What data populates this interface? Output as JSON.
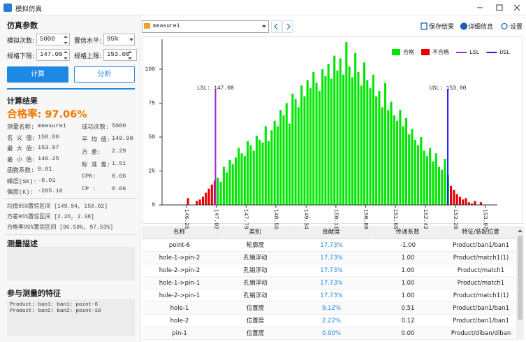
{
  "window": {
    "title": "模拟仿真"
  },
  "params": {
    "title": "仿真参数",
    "fields": [
      {
        "label": "模拟次数:",
        "value": "5000"
      },
      {
        "label": "置信水平:",
        "value": "95%"
      },
      {
        "label": "规格下限:",
        "value": "147.00"
      },
      {
        "label": "规格上限:",
        "value": "153.00"
      }
    ],
    "buttons": [
      "计算",
      "分析"
    ]
  },
  "results": {
    "title": "计算结果",
    "pass_rate": "合格率: 97.06%",
    "stats_left": [
      {
        "label": "测量名称:",
        "value": "measure1"
      },
      {
        "label": "名 义 值:",
        "value": "150.00"
      },
      {
        "label": "最 大 值:",
        "value": "153.97"
      },
      {
        "label": "最 小 值:",
        "value": "146.25"
      },
      {
        "label": "函数系数:",
        "value": "0.01"
      },
      {
        "label": "峰度(SK):",
        "value": "-0.01"
      },
      {
        "label": "偏度(K):",
        "value": "-265.16"
      }
    ],
    "stats_right": [
      {
        "label": "成功次数:",
        "value": "5000"
      },
      {
        "label": "平 均 值:",
        "value": "149.98"
      },
      {
        "label": "方   差:",
        "value": "2.29"
      },
      {
        "label": "标 准 差:",
        "value": "1.51"
      },
      {
        "label": "CPK:",
        "value": "0.66"
      },
      {
        "label": "CP :",
        "value": "0.66"
      }
    ],
    "intervals": [
      "均值95%置信区间 [149.94, 150.02]",
      "方差95%置信区间 [2.20, 2.38]",
      "合格率95%置信区间 [96.59%, 97.53%]"
    ]
  },
  "description": {
    "title": "测量描述"
  },
  "features": {
    "title": "参与测量的特征",
    "lines": [
      "Product: ban1: ban1: point-6",
      "Product: ban2: ban2: point-10"
    ]
  },
  "toolbar": {
    "measure": "measure1",
    "buttons": [
      "保存结果",
      "详细信息",
      "设置"
    ]
  },
  "chart_data": {
    "type": "histogram",
    "bins": [
      146.25,
      146.3272,
      146.4044,
      146.4816,
      146.5588,
      146.636,
      146.7132,
      146.7904,
      146.8676,
      146.9448,
      147.022,
      147.0992,
      147.1764,
      147.2536,
      147.3308,
      147.408,
      147.4852,
      147.5624,
      147.6396,
      147.7168,
      147.794,
      147.8712,
      147.9484,
      148.0256,
      148.1028,
      148.18,
      148.2572,
      148.3344,
      148.4116,
      148.4888,
      148.566,
      148.6432,
      148.7204,
      148.7976,
      148.8748,
      148.952,
      149.0292,
      149.1064,
      149.1836,
      149.2608,
      149.338,
      149.4152,
      149.4924,
      149.5696,
      149.6468,
      149.724,
      149.8012,
      149.8784,
      149.9556,
      150.0328,
      150.11,
      150.1872,
      150.2644,
      150.3416,
      150.4188,
      150.496,
      150.5732,
      150.6504,
      150.7276,
      150.8048,
      150.882,
      150.9592,
      151.0364,
      151.1136,
      151.1908,
      151.268,
      151.3452,
      151.4224,
      151.4996,
      151.5768,
      151.654,
      151.7312,
      151.8084,
      151.8856,
      151.9628,
      152.04,
      152.1172,
      152.1944,
      152.2716,
      152.3488,
      152.426,
      152.5032,
      152.5804,
      152.6576,
      152.7348,
      152.812,
      152.8892,
      152.9664,
      153.0436,
      153.1208,
      153.198,
      153.2752,
      153.3524,
      153.4296,
      153.5068,
      153.584,
      153.6612,
      153.7384,
      153.8156,
      153.8928,
      153.97
    ],
    "series": [
      {
        "name": "合格",
        "color": "#00e600",
        "values": [
          0,
          0,
          0,
          0,
          0,
          0,
          0,
          0,
          0,
          0,
          20,
          17,
          28,
          24,
          33,
          30,
          35,
          42,
          38,
          36,
          47,
          44,
          40,
          51,
          48,
          46,
          58,
          47,
          55,
          62,
          58,
          70,
          66,
          75,
          60,
          82,
          78,
          72,
          88,
          80,
          92,
          86,
          98,
          90,
          84,
          100,
          95,
          104,
          93,
          110,
          99,
          108,
          96,
          120,
          102,
          94,
          112,
          98,
          88,
          105,
          92,
          86,
          96,
          80,
          84,
          72,
          90,
          70,
          76,
          66,
          62,
          70,
          58,
          64,
          52,
          56,
          48,
          44,
          50,
          40,
          36,
          42,
          32,
          38,
          28,
          26,
          34,
          22,
          0,
          0,
          0,
          0,
          0,
          0,
          0,
          0,
          0,
          0,
          0,
          0
        ]
      },
      {
        "name": "不合格",
        "color": "#e60000",
        "values": [
          5,
          0,
          0,
          3,
          4,
          6,
          9,
          12,
          15,
          18,
          0,
          0,
          0,
          0,
          0,
          0,
          0,
          0,
          0,
          0,
          0,
          0,
          0,
          0,
          0,
          0,
          0,
          0,
          0,
          0,
          0,
          0,
          0,
          0,
          0,
          0,
          0,
          0,
          0,
          0,
          0,
          0,
          0,
          0,
          0,
          0,
          0,
          0,
          0,
          0,
          0,
          0,
          0,
          0,
          0,
          0,
          0,
          0,
          0,
          0,
          0,
          0,
          0,
          0,
          0,
          0,
          0,
          0,
          0,
          0,
          0,
          0,
          0,
          0,
          0,
          0,
          0,
          0,
          0,
          0,
          0,
          0,
          0,
          0,
          0,
          0,
          0,
          0,
          14,
          11,
          8,
          6,
          4,
          5,
          2,
          1,
          3,
          0,
          2,
          0
        ]
      }
    ],
    "spec_lines": [
      {
        "name": "LSL",
        "value": 147.0,
        "label": "LSL: 147.00",
        "color": "#9b30d9"
      },
      {
        "name": "USL",
        "value": 153.0,
        "label": "USL: 153.00",
        "color": "#1a1aff"
      }
    ],
    "xlim": [
      145.62,
      154.28
    ],
    "ylim": [
      0,
      122
    ],
    "xticks": [
      146.25,
      147.02,
      147.79,
      148.56,
      149.34,
      150.11,
      150.88,
      151.65,
      152.42,
      {
        "value": 153.2,
        "label": "153.20"
      },
      153.97
    ],
    "yticks": [
      0,
      25,
      50,
      75,
      100
    ],
    "grid": false,
    "legend": "upper right"
  },
  "table": {
    "columns": [
      "名称",
      "类别",
      "贡献度",
      "传递系数",
      "特征/装配位置"
    ],
    "rows": [
      [
        "point-6",
        "轮廓度",
        "17.73%",
        "-1.00",
        "Product/ban1/ban1"
      ],
      [
        "hole-1->pin-2",
        "孔销浮动",
        "17.73%",
        "1.00",
        "Product/match1(1)"
      ],
      [
        "hole-2->pin-2",
        "孔销浮动",
        "17.73%",
        "1.00",
        "Product/match1"
      ],
      [
        "hole-1->pin-1",
        "孔销浮动",
        "17.73%",
        "1.00",
        "Product/match1"
      ],
      [
        "hole-2->pin-1",
        "孔销浮动",
        "17.73%",
        "1.00",
        "Product/match1(1)"
      ],
      [
        "hole-1",
        "位置度",
        "9.12%",
        "0.51",
        "Product/ban1/ban1"
      ],
      [
        "hole-2",
        "位置度",
        "2.22%",
        "0.12",
        "Product/ban1/ban1"
      ],
      [
        "pin-1",
        "位置度",
        "0.00%",
        "0.00",
        "Product/diban/diban"
      ]
    ]
  }
}
